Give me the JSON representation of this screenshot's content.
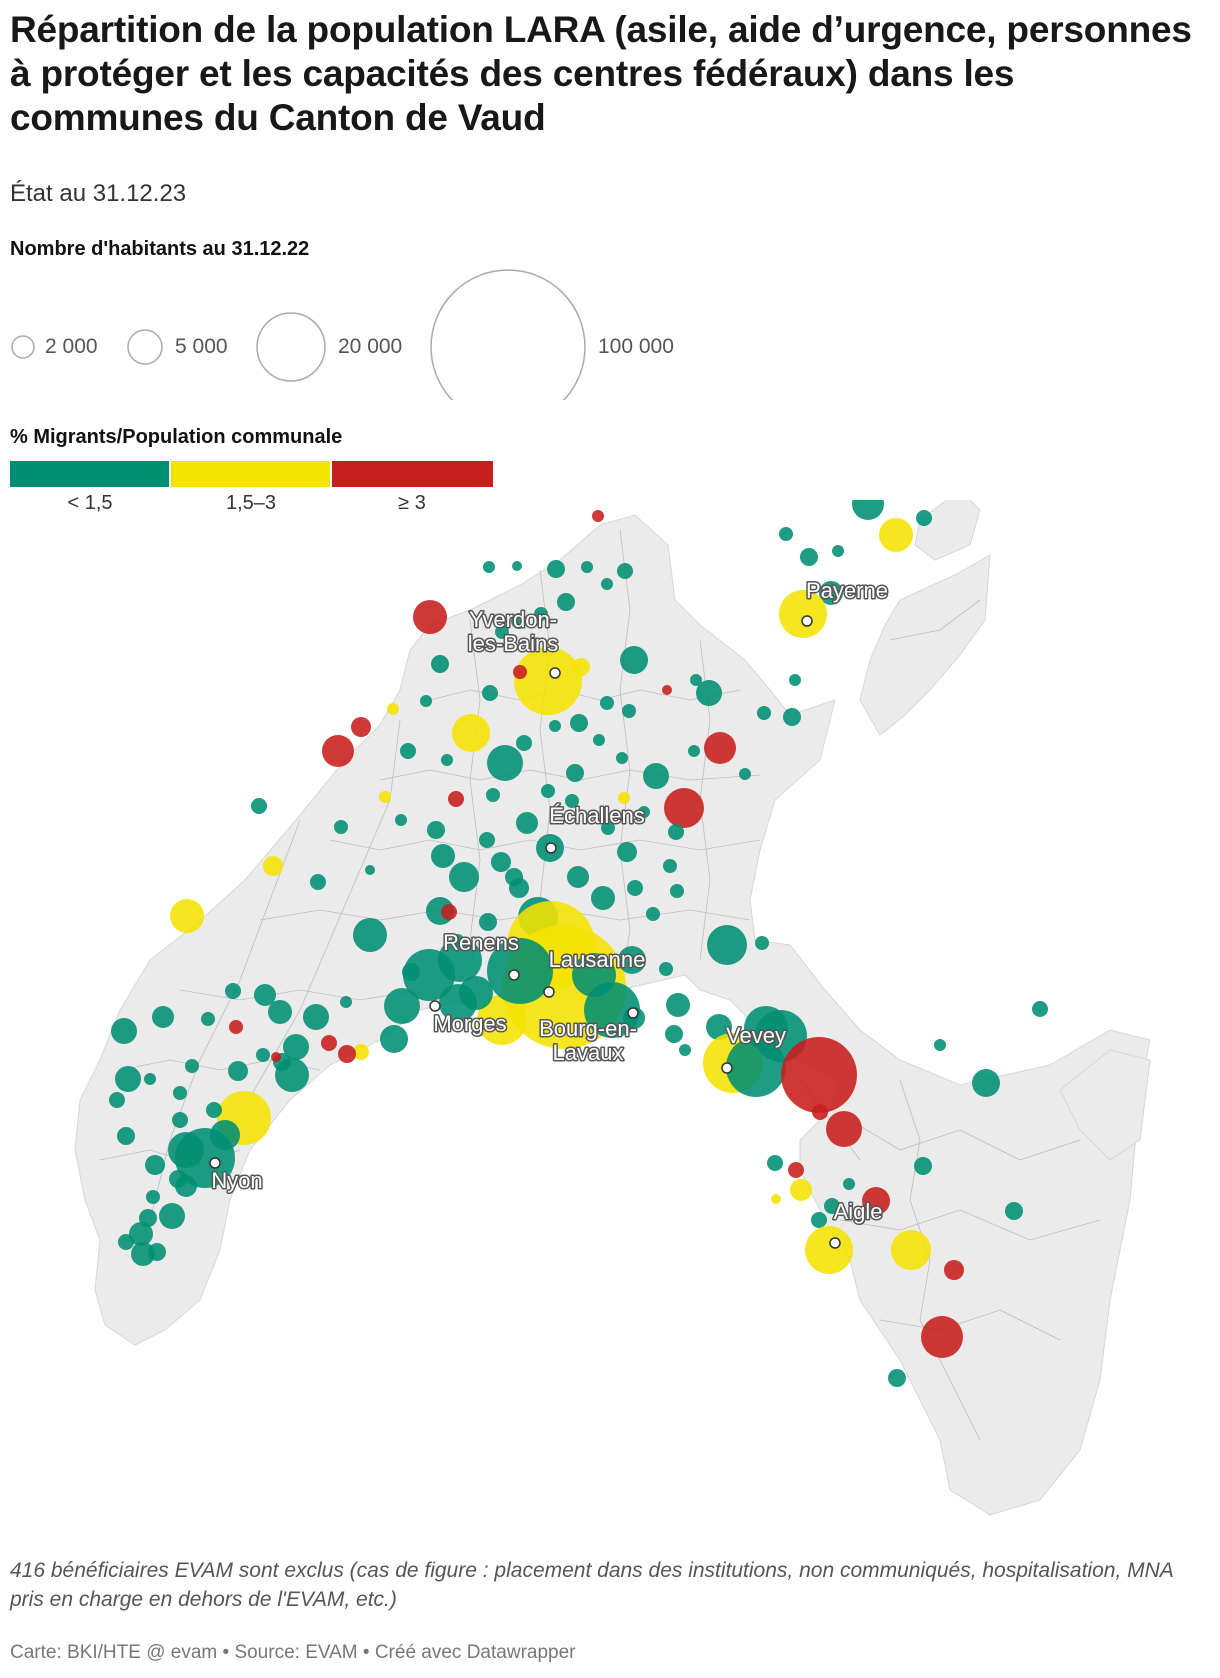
{
  "title": "Répartition de la population LARA (asile, aide d’urgence, personnes à protéger et les capacités des centres fédéraux) dans les communes du Canton de Vaud",
  "subtitle": "État au 31.12.23",
  "size_legend": {
    "title": "Nombre d'habitants au 31.12.22",
    "items": [
      {
        "label": "2 000",
        "value": 2000
      },
      {
        "label": "5 000",
        "value": 5000
      },
      {
        "label": "20 000",
        "value": 20000
      },
      {
        "label": "100 000",
        "value": 100000
      }
    ]
  },
  "color_legend": {
    "title": "% Migrants/Population communale",
    "items": [
      {
        "label": "< 1,5",
        "color": "#008e73"
      },
      {
        "label": "1,5–3",
        "color": "#f5e300"
      },
      {
        "label": "≥ 3",
        "color": "#c71e1d"
      }
    ]
  },
  "map": {
    "land_color": "#ebebeb",
    "border_color": "#b8b8b8",
    "cities": [
      {
        "name": "Payerne"
      },
      {
        "name": "Yverdon-les-Bains"
      },
      {
        "name": "Échallens"
      },
      {
        "name": "Renens"
      },
      {
        "name": "Lausanne"
      },
      {
        "name": "Morges"
      },
      {
        "name": "Bourg-en-Lavaux"
      },
      {
        "name": "Vevey"
      },
      {
        "name": "Aigle"
      },
      {
        "name": "Nyon"
      }
    ]
  },
  "note": "416 bénéficiaires EVAM sont exclus (cas de figure : placement dans des institutions, non communiqués, hospitalisation, MNA pris en charge en dehors de l'EVAM, etc.)",
  "credit": "Carte: BKI/HTE @ evam • Source: EVAM • Créé avec Datawrapper"
}
